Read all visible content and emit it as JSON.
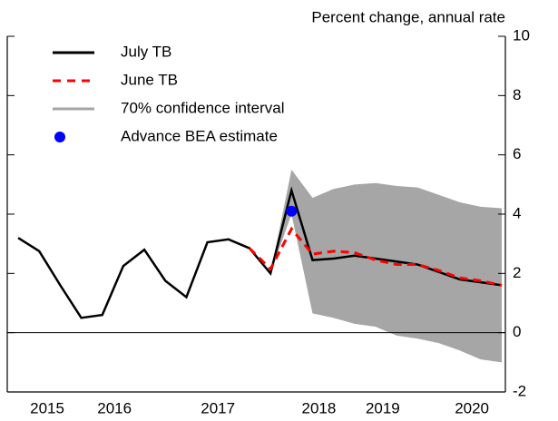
{
  "chart_data": {
    "type": "line",
    "title": "Percent change, annual rate",
    "x": [
      2014.625,
      2014.875,
      2015.125,
      2015.375,
      2015.625,
      2015.875,
      2016.125,
      2016.375,
      2016.625,
      2016.875,
      2017.125,
      2017.375,
      2017.625,
      2017.875,
      2018.125,
      2018.375,
      2018.625,
      2018.875,
      2019.125,
      2019.375,
      2019.625,
      2019.875,
      2020.125,
      2020.375
    ],
    "series": [
      {
        "name": "July TB",
        "color": "#000000",
        "style": "solid",
        "values": [
          3.2,
          2.75,
          1.6,
          0.5,
          0.6,
          2.25,
          2.8,
          1.75,
          1.2,
          3.05,
          3.15,
          2.85,
          2.0,
          4.8,
          2.45,
          2.5,
          2.6,
          2.5,
          2.4,
          2.3,
          2.05,
          1.8,
          1.7,
          1.6
        ]
      },
      {
        "name": "June TB",
        "color": "#ff0000",
        "style": "dashed",
        "values": [
          null,
          null,
          null,
          null,
          null,
          null,
          null,
          null,
          null,
          null,
          null,
          2.85,
          2.15,
          3.5,
          2.65,
          2.75,
          2.7,
          2.45,
          2.3,
          2.3,
          2.1,
          1.85,
          1.75,
          1.6
        ]
      },
      {
        "name": "70% confidence interval",
        "color": "#a6a6a6",
        "style": "band",
        "lower": [
          null,
          null,
          null,
          null,
          null,
          null,
          null,
          null,
          null,
          null,
          null,
          null,
          2.0,
          4.0,
          0.65,
          0.5,
          0.3,
          0.2,
          -0.1,
          -0.2,
          -0.35,
          -0.6,
          -0.9,
          -1.0
        ],
        "upper": [
          null,
          null,
          null,
          null,
          null,
          null,
          null,
          null,
          null,
          null,
          null,
          null,
          2.0,
          5.5,
          4.55,
          4.85,
          5.0,
          5.05,
          4.95,
          4.9,
          4.65,
          4.4,
          4.25,
          4.2
        ]
      },
      {
        "name": "Advance BEA estimate",
        "color": "#0000ff",
        "style": "point",
        "x": [
          2017.875
        ],
        "values": [
          4.1
        ]
      }
    ],
    "xlim": [
      2014.495,
      2020.418
    ],
    "xticks": [
      {
        "value": 2014.97,
        "label": "2015"
      },
      {
        "value": 2015.77,
        "label": "2016"
      },
      {
        "value": 2017.0,
        "label": "2017"
      },
      {
        "value": 2018.2,
        "label": "2018"
      },
      {
        "value": 2018.96,
        "label": "2019"
      },
      {
        "value": 2020.02,
        "label": "2020"
      }
    ],
    "ylim": [
      -2,
      10
    ],
    "yticks": [
      -2,
      0,
      2,
      4,
      6,
      8,
      10
    ],
    "zero_line": true,
    "legend": "top-left"
  }
}
